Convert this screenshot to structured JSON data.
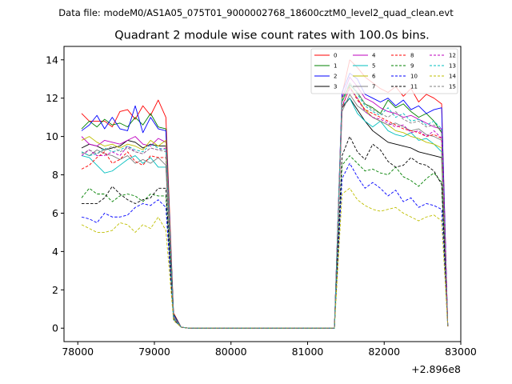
{
  "header": {
    "file_title": "Data file: modeM0/AS1A05_075T01_9000002768_18600cztM0_level2_quad_clean.evt",
    "chart_title": "Quadrant 2 module wise count rates with 100.0s bins."
  },
  "chart_data": {
    "type": "line",
    "title": "Quadrant 2 module wise count rates with 100.0s bins.",
    "xlabel": "",
    "ylabel": "",
    "x_offset_label": "+2.896e8",
    "xlim": [
      77820,
      83000
    ],
    "ylim": [
      -0.7,
      14.7
    ],
    "x_ticks": [
      78000,
      79000,
      80000,
      81000,
      82000,
      83000
    ],
    "x_tick_labels": [
      "78000",
      "79000",
      "80000",
      "81000",
      "82000",
      "83000"
    ],
    "y_ticks": [
      0,
      2,
      4,
      6,
      8,
      10,
      12,
      14
    ],
    "y_tick_labels": [
      "0",
      "2",
      "4",
      "6",
      "8",
      "10",
      "12",
      "14"
    ],
    "grid": false,
    "legend_placement": "top-right",
    "x": [
      78050,
      78150,
      78250,
      78350,
      78450,
      78550,
      78650,
      78750,
      78850,
      78950,
      79050,
      79150,
      79250,
      79350,
      79450,
      79550,
      79650,
      79750,
      79850,
      79950,
      80050,
      80150,
      80250,
      80350,
      80450,
      80550,
      80650,
      80750,
      80850,
      80950,
      81050,
      81150,
      81250,
      81350,
      81450,
      81550,
      81650,
      81750,
      81850,
      81950,
      82050,
      82150,
      82250,
      82350,
      82450,
      82550,
      82650,
      82750
    ],
    "series": [
      {
        "name": "0",
        "color": "#ff0000",
        "dash": "solid",
        "values": [
          11.2,
          10.8,
          10.8,
          10.8,
          10.5,
          11.3,
          11.4,
          10.9,
          11.6,
          11.1,
          11.9,
          11.0,
          0.8,
          0.05,
          0,
          0,
          0,
          0,
          0,
          0,
          0,
          0,
          0,
          0,
          0,
          0,
          0,
          0,
          0,
          0,
          0,
          0,
          0,
          0,
          12.2,
          14.0,
          13.6,
          13.1,
          12.8,
          12.5,
          12.3,
          12.6,
          12.1,
          12.5,
          11.8,
          12.2,
          12.0,
          11.7
        ]
      },
      {
        "name": "1",
        "color": "#008000",
        "dash": "solid",
        "values": [
          10.4,
          10.8,
          10.5,
          10.9,
          10.6,
          10.7,
          10.5,
          11.0,
          10.6,
          11.2,
          10.5,
          10.4,
          0.75,
          0.05,
          0,
          0,
          0,
          0,
          0,
          0,
          0,
          0,
          0,
          0,
          0,
          0,
          0,
          0,
          0,
          0,
          0,
          0,
          0,
          0,
          11.8,
          12.7,
          12.3,
          11.7,
          11.5,
          11.2,
          11.9,
          11.5,
          11.7,
          11.3,
          11.0,
          11.2,
          10.8,
          10.2
        ]
      },
      {
        "name": "2",
        "color": "#0000ff",
        "dash": "solid",
        "values": [
          10.3,
          10.6,
          11.1,
          10.4,
          11.0,
          10.4,
          10.3,
          11.6,
          10.2,
          11.0,
          10.4,
          10.3,
          0.7,
          0.05,
          0,
          0,
          0,
          0,
          0,
          0,
          0,
          0,
          0,
          0,
          0,
          0,
          0,
          0,
          0,
          0,
          0,
          0,
          0,
          0,
          12.3,
          13.3,
          13.0,
          12.2,
          12.0,
          11.8,
          12.0,
          11.6,
          11.9,
          11.4,
          11.6,
          11.2,
          11.4,
          11.5
        ]
      },
      {
        "name": "3",
        "color": "#000000",
        "dash": "solid",
        "values": [
          9.4,
          9.6,
          9.5,
          9.3,
          9.4,
          9.5,
          9.8,
          9.7,
          9.4,
          9.6,
          9.5,
          9.5,
          0.6,
          0.05,
          0,
          0,
          0,
          0,
          0,
          0,
          0,
          0,
          0,
          0,
          0,
          0,
          0,
          0,
          0,
          0,
          0,
          0,
          0,
          0,
          11.5,
          12.0,
          11.4,
          10.8,
          10.3,
          10.0,
          9.7,
          9.6,
          9.5,
          9.4,
          9.2,
          9.1,
          9.0,
          8.9
        ]
      },
      {
        "name": "4",
        "color": "#bf00bf",
        "dash": "solid",
        "values": [
          10.0,
          9.6,
          9.5,
          9.8,
          9.7,
          9.6,
          9.8,
          10.0,
          9.6,
          9.5,
          9.9,
          9.7,
          0.6,
          0.05,
          0,
          0,
          0,
          0,
          0,
          0,
          0,
          0,
          0,
          0,
          0,
          0,
          0,
          0,
          0,
          0,
          0,
          0,
          0,
          0,
          12.0,
          13.1,
          12.6,
          12.0,
          11.8,
          11.5,
          11.3,
          11.2,
          11.0,
          11.1,
          10.9,
          10.7,
          10.5,
          10.4
        ]
      },
      {
        "name": "5",
        "color": "#00bfbf",
        "dash": "solid",
        "values": [
          9.0,
          8.9,
          8.5,
          8.1,
          8.2,
          8.5,
          8.8,
          9.0,
          8.6,
          8.9,
          8.4,
          8.4,
          0.55,
          0.05,
          0,
          0,
          0,
          0,
          0,
          0,
          0,
          0,
          0,
          0,
          0,
          0,
          0,
          0,
          0,
          0,
          0,
          0,
          0,
          0,
          11.6,
          12.0,
          11.2,
          10.8,
          10.5,
          10.8,
          10.3,
          10.1,
          10.0,
          10.2,
          9.8,
          9.9,
          9.6,
          9.2
        ]
      },
      {
        "name": "6",
        "color": "#bfbf00",
        "dash": "solid",
        "values": [
          9.8,
          10.0,
          9.7,
          9.5,
          9.6,
          9.4,
          9.6,
          9.5,
          9.3,
          9.8,
          9.5,
          9.8,
          0.6,
          0.05,
          0,
          0,
          0,
          0,
          0,
          0,
          0,
          0,
          0,
          0,
          0,
          0,
          0,
          0,
          0,
          0,
          0,
          0,
          0,
          0,
          12.0,
          12.6,
          12.0,
          11.4,
          11.0,
          10.8,
          10.6,
          10.3,
          10.2,
          10.0,
          9.9,
          9.7,
          9.6,
          9.4
        ]
      },
      {
        "name": "7",
        "color": "#808080",
        "dash": "solid",
        "values": [
          9.2,
          9.0,
          9.3,
          9.1,
          9.0,
          8.8,
          9.0,
          8.6,
          8.8,
          8.6,
          8.9,
          8.5,
          0.55,
          0.05,
          0,
          0,
          0,
          0,
          0,
          0,
          0,
          0,
          0,
          0,
          0,
          0,
          0,
          0,
          0,
          0,
          0,
          0,
          0,
          0,
          11.3,
          12.2,
          11.6,
          11.3,
          11.0,
          10.8,
          10.6,
          10.7,
          10.5,
          10.3,
          10.4,
          10.1,
          10.0,
          9.8
        ]
      },
      {
        "name": "8",
        "color": "#ff0000",
        "dash": "dashed",
        "values": [
          8.3,
          8.5,
          8.9,
          9.2,
          8.6,
          8.8,
          9.2,
          8.7,
          8.5,
          9.0,
          8.9,
          8.9,
          0.55,
          0.05,
          0,
          0,
          0,
          0,
          0,
          0,
          0,
          0,
          0,
          0,
          0,
          0,
          0,
          0,
          0,
          0,
          0,
          0,
          0,
          0,
          11.5,
          12.6,
          11.9,
          11.4,
          11.2,
          11.0,
          10.8,
          10.6,
          10.4,
          10.3,
          10.2,
          10.0,
          10.1,
          9.9
        ]
      },
      {
        "name": "9",
        "color": "#008000",
        "dash": "dashed",
        "values": [
          6.8,
          7.3,
          7.0,
          7.0,
          6.6,
          6.9,
          7.0,
          6.9,
          6.6,
          7.0,
          6.9,
          6.9,
          0.45,
          0.05,
          0,
          0,
          0,
          0,
          0,
          0,
          0,
          0,
          0,
          0,
          0,
          0,
          0,
          0,
          0,
          0,
          0,
          0,
          0,
          0,
          8.5,
          9.0,
          8.6,
          8.2,
          8.3,
          8.1,
          8.0,
          8.4,
          7.9,
          7.7,
          7.4,
          7.8,
          8.1,
          7.6
        ]
      },
      {
        "name": "10",
        "color": "#0000ff",
        "dash": "dashed",
        "values": [
          5.8,
          5.7,
          5.5,
          6.0,
          5.8,
          5.8,
          5.9,
          6.3,
          6.5,
          6.4,
          6.7,
          6.3,
          0.45,
          0.05,
          0,
          0,
          0,
          0,
          0,
          0,
          0,
          0,
          0,
          0,
          0,
          0,
          0,
          0,
          0,
          0,
          0,
          0,
          0,
          0,
          7.8,
          8.6,
          7.9,
          7.3,
          7.6,
          7.3,
          6.9,
          7.2,
          6.6,
          6.8,
          6.3,
          6.5,
          6.4,
          6.2
        ]
      },
      {
        "name": "11",
        "color": "#000000",
        "dash": "dashed",
        "values": [
          6.5,
          6.5,
          6.5,
          6.8,
          7.4,
          7.0,
          6.7,
          6.5,
          6.7,
          6.8,
          7.3,
          7.3,
          0.5,
          0.05,
          0,
          0,
          0,
          0,
          0,
          0,
          0,
          0,
          0,
          0,
          0,
          0,
          0,
          0,
          0,
          0,
          0,
          0,
          0,
          0,
          9.0,
          10.0,
          9.2,
          8.8,
          9.6,
          9.3,
          8.7,
          8.4,
          8.5,
          8.9,
          8.6,
          8.5,
          8.2,
          7.5
        ]
      },
      {
        "name": "12",
        "color": "#bf00bf",
        "dash": "dashed",
        "values": [
          9.0,
          9.3,
          9.0,
          9.0,
          9.2,
          9.0,
          9.5,
          9.2,
          9.1,
          9.4,
          9.3,
          9.4,
          0.55,
          0.05,
          0,
          0,
          0,
          0,
          0,
          0,
          0,
          0,
          0,
          0,
          0,
          0,
          0,
          0,
          0,
          0,
          0,
          0,
          0,
          0,
          11.6,
          12.5,
          12.0,
          11.3,
          11.0,
          10.9,
          10.7,
          10.5,
          10.6,
          10.2,
          10.3,
          10.0,
          10.3,
          9.9
        ]
      },
      {
        "name": "13",
        "color": "#00bfbf",
        "dash": "dashed",
        "values": [
          9.2,
          9.0,
          9.1,
          9.4,
          9.2,
          9.3,
          9.5,
          9.3,
          9.2,
          9.6,
          9.4,
          9.3,
          0.55,
          0.05,
          0,
          0,
          0,
          0,
          0,
          0,
          0,
          0,
          0,
          0,
          0,
          0,
          0,
          0,
          0,
          0,
          0,
          0,
          0,
          0,
          11.9,
          12.8,
          12.2,
          11.6,
          11.3,
          11.1,
          11.5,
          11.0,
          11.2,
          10.8,
          10.9,
          10.6,
          10.8,
          10.4
        ]
      },
      {
        "name": "14",
        "color": "#bfbf00",
        "dash": "dashed",
        "values": [
          5.4,
          5.2,
          5.0,
          5.0,
          5.1,
          5.5,
          5.4,
          5.0,
          5.4,
          5.2,
          5.8,
          5.1,
          0.4,
          0.05,
          0,
          0,
          0,
          0,
          0,
          0,
          0,
          0,
          0,
          0,
          0,
          0,
          0,
          0,
          0,
          0,
          0,
          0,
          0,
          0,
          7.0,
          7.3,
          6.7,
          6.4,
          6.2,
          6.1,
          6.2,
          6.3,
          6.0,
          5.8,
          5.6,
          5.8,
          5.9,
          5.6
        ]
      },
      {
        "name": "15",
        "color": "#808080",
        "dash": "dashed",
        "values": [
          9.1,
          9.3,
          9.1,
          9.3,
          9.5,
          9.2,
          9.4,
          9.2,
          9.1,
          9.4,
          9.3,
          9.2,
          0.55,
          0.05,
          0,
          0,
          0,
          0,
          0,
          0,
          0,
          0,
          0,
          0,
          0,
          0,
          0,
          0,
          0,
          0,
          0,
          0,
          0,
          0,
          11.8,
          12.8,
          12.3,
          11.7,
          11.4,
          11.2,
          11.0,
          11.3,
          10.9,
          10.7,
          10.8,
          10.5,
          10.6,
          10.3
        ]
      }
    ],
    "end_point": {
      "x": 82830,
      "value": 0.1
    }
  }
}
